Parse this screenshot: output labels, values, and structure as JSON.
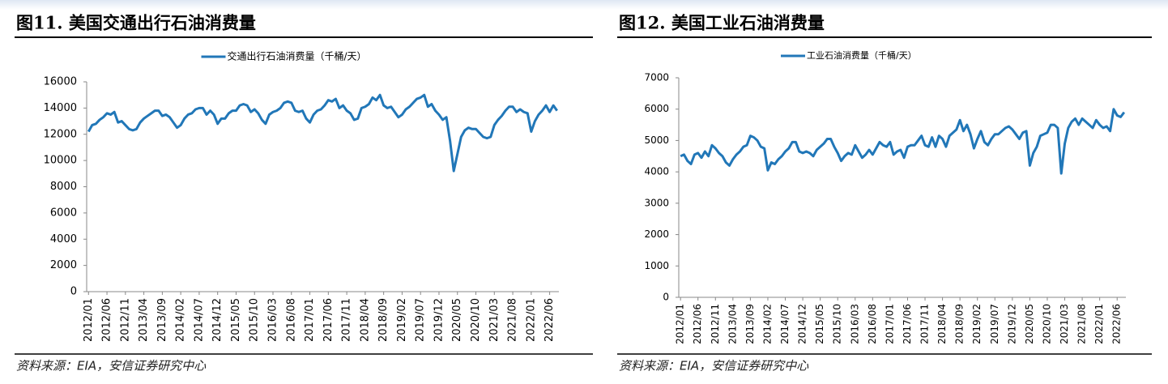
{
  "chart_data": [
    {
      "type": "line",
      "title": "图11. 美国交通出行石油消费量",
      "source": "资料来源：EIA，安信证券研究中心",
      "categories": [
        "2012/01",
        null,
        null,
        null,
        null,
        "2012/06",
        null,
        null,
        null,
        null,
        "2012/11",
        null,
        null,
        null,
        null,
        "2013/04",
        null,
        null,
        null,
        null,
        "2013/09",
        null,
        null,
        null,
        null,
        "2014/02",
        null,
        null,
        null,
        null,
        "2014/07",
        null,
        null,
        null,
        null,
        "2014/12",
        null,
        null,
        null,
        null,
        "2015/05",
        null,
        null,
        null,
        null,
        "2015/10",
        null,
        null,
        null,
        null,
        "2016/03",
        null,
        null,
        null,
        null,
        "2016/08",
        null,
        null,
        null,
        null,
        "2017/01",
        null,
        null,
        null,
        null,
        "2017/06",
        null,
        null,
        null,
        null,
        "2017/11",
        null,
        null,
        null,
        null,
        "2018/04",
        null,
        null,
        null,
        null,
        "2018/09",
        null,
        null,
        null,
        null,
        "2019/02",
        null,
        null,
        null,
        null,
        "2019/07",
        null,
        null,
        null,
        null,
        "2019/12",
        null,
        null,
        null,
        null,
        "2020/05",
        null,
        null,
        null,
        null,
        "2020/10",
        null,
        null,
        null,
        null,
        "2021/03",
        null,
        null,
        null,
        null,
        "2021/08",
        null,
        null,
        null,
        null,
        "2022/01",
        null,
        null,
        null,
        null,
        "2022/06",
        null,
        null
      ],
      "series": [
        {
          "name": "交通出行石油消费量（千桶/天）",
          "color": "#2177b8",
          "values": [
            12200,
            12700,
            12800,
            13100,
            13300,
            13600,
            13500,
            13700,
            12900,
            13000,
            12700,
            12400,
            12300,
            12400,
            12900,
            13200,
            13400,
            13600,
            13800,
            13800,
            13400,
            13500,
            13300,
            12900,
            12500,
            12700,
            13200,
            13500,
            13600,
            13900,
            14000,
            14000,
            13500,
            13800,
            13500,
            12800,
            13200,
            13200,
            13600,
            13800,
            13800,
            14200,
            14300,
            14200,
            13700,
            13900,
            13600,
            13100,
            12800,
            13500,
            13700,
            13800,
            14000,
            14400,
            14500,
            14400,
            13800,
            13700,
            13800,
            13200,
            12900,
            13500,
            13800,
            13900,
            14200,
            14600,
            14500,
            14700,
            14000,
            14200,
            13800,
            13600,
            13100,
            13200,
            14000,
            14100,
            14300,
            14800,
            14600,
            15000,
            14200,
            14000,
            14100,
            13700,
            13300,
            13500,
            13900,
            14100,
            14400,
            14700,
            14800,
            15000,
            14100,
            14300,
            13800,
            13500,
            13100,
            13300,
            11500,
            9200,
            10500,
            11800,
            12300,
            12500,
            12400,
            12400,
            12100,
            11800,
            11700,
            11800,
            12700,
            13100,
            13400,
            13800,
            14100,
            14100,
            13700,
            13900,
            13700,
            13600,
            12200,
            13000,
            13500,
            13800,
            14200,
            13700,
            14200,
            13800
          ]
        }
      ],
      "ylim": [
        0,
        16000
      ],
      "yticks": [
        0,
        2000,
        4000,
        6000,
        8000,
        10000,
        12000,
        14000,
        16000
      ]
    },
    {
      "type": "line",
      "title": "图12. 美国工业石油消费量",
      "source": "资料来源：EIA，安信证券研究中心",
      "categories": [
        "2012/01",
        null,
        null,
        null,
        null,
        "2012/06",
        null,
        null,
        null,
        null,
        "2012/11",
        null,
        null,
        null,
        null,
        "2013/04",
        null,
        null,
        null,
        null,
        "2013/09",
        null,
        null,
        null,
        null,
        "2014/02",
        null,
        null,
        null,
        null,
        "2014/07",
        null,
        null,
        null,
        null,
        "2014/12",
        null,
        null,
        null,
        null,
        "2015/05",
        null,
        null,
        null,
        null,
        "2015/10",
        null,
        null,
        null,
        null,
        "2016/03",
        null,
        null,
        null,
        null,
        "2016/08",
        null,
        null,
        null,
        null,
        "2017/01",
        null,
        null,
        null,
        null,
        "2017/06",
        null,
        null,
        null,
        null,
        "2017/11",
        null,
        null,
        null,
        null,
        "2018/04",
        null,
        null,
        null,
        null,
        "2018/09",
        null,
        null,
        null,
        null,
        "2019/02",
        null,
        null,
        null,
        null,
        "2019/07",
        null,
        null,
        null,
        null,
        "2019/12",
        null,
        null,
        null,
        null,
        "2020/05",
        null,
        null,
        null,
        null,
        "2020/10",
        null,
        null,
        null,
        null,
        "2021/03",
        null,
        null,
        null,
        null,
        "2021/08",
        null,
        null,
        null,
        null,
        "2022/01",
        null,
        null,
        null,
        null,
        "2022/06",
        null,
        null
      ],
      "series": [
        {
          "name": "工业石油消费量（千桶/天）",
          "color": "#2177b8",
          "values": [
            4500,
            4550,
            4350,
            4250,
            4550,
            4600,
            4450,
            4650,
            4500,
            4850,
            4750,
            4600,
            4500,
            4300,
            4200,
            4400,
            4550,
            4650,
            4800,
            4850,
            5150,
            5100,
            5000,
            4800,
            4750,
            4050,
            4300,
            4250,
            4400,
            4500,
            4650,
            4750,
            4950,
            4950,
            4650,
            4600,
            4650,
            4600,
            4500,
            4700,
            4800,
            4900,
            5050,
            5050,
            4800,
            4600,
            4350,
            4500,
            4600,
            4550,
            4850,
            4650,
            4450,
            4550,
            4700,
            4550,
            4750,
            4950,
            4850,
            4800,
            4950,
            4550,
            4650,
            4700,
            4450,
            4800,
            4850,
            4850,
            5000,
            5150,
            4850,
            4800,
            5100,
            4800,
            5150,
            5050,
            4800,
            5150,
            5250,
            5350,
            5650,
            5300,
            5500,
            5200,
            4750,
            5050,
            5300,
            4950,
            4850,
            5050,
            5200,
            5200,
            5300,
            5400,
            5450,
            5350,
            5200,
            5050,
            5250,
            5300,
            4200,
            4600,
            4800,
            5150,
            5200,
            5250,
            5500,
            5500,
            5400,
            3950,
            4900,
            5400,
            5600,
            5700,
            5500,
            5700,
            5600,
            5500,
            5400,
            5650,
            5500,
            5400,
            5450,
            5300,
            6000,
            5800,
            5750,
            5900
          ]
        }
      ],
      "ylim": [
        0,
        7000
      ],
      "yticks": [
        0,
        1000,
        2000,
        3000,
        4000,
        5000,
        6000,
        7000
      ]
    }
  ]
}
